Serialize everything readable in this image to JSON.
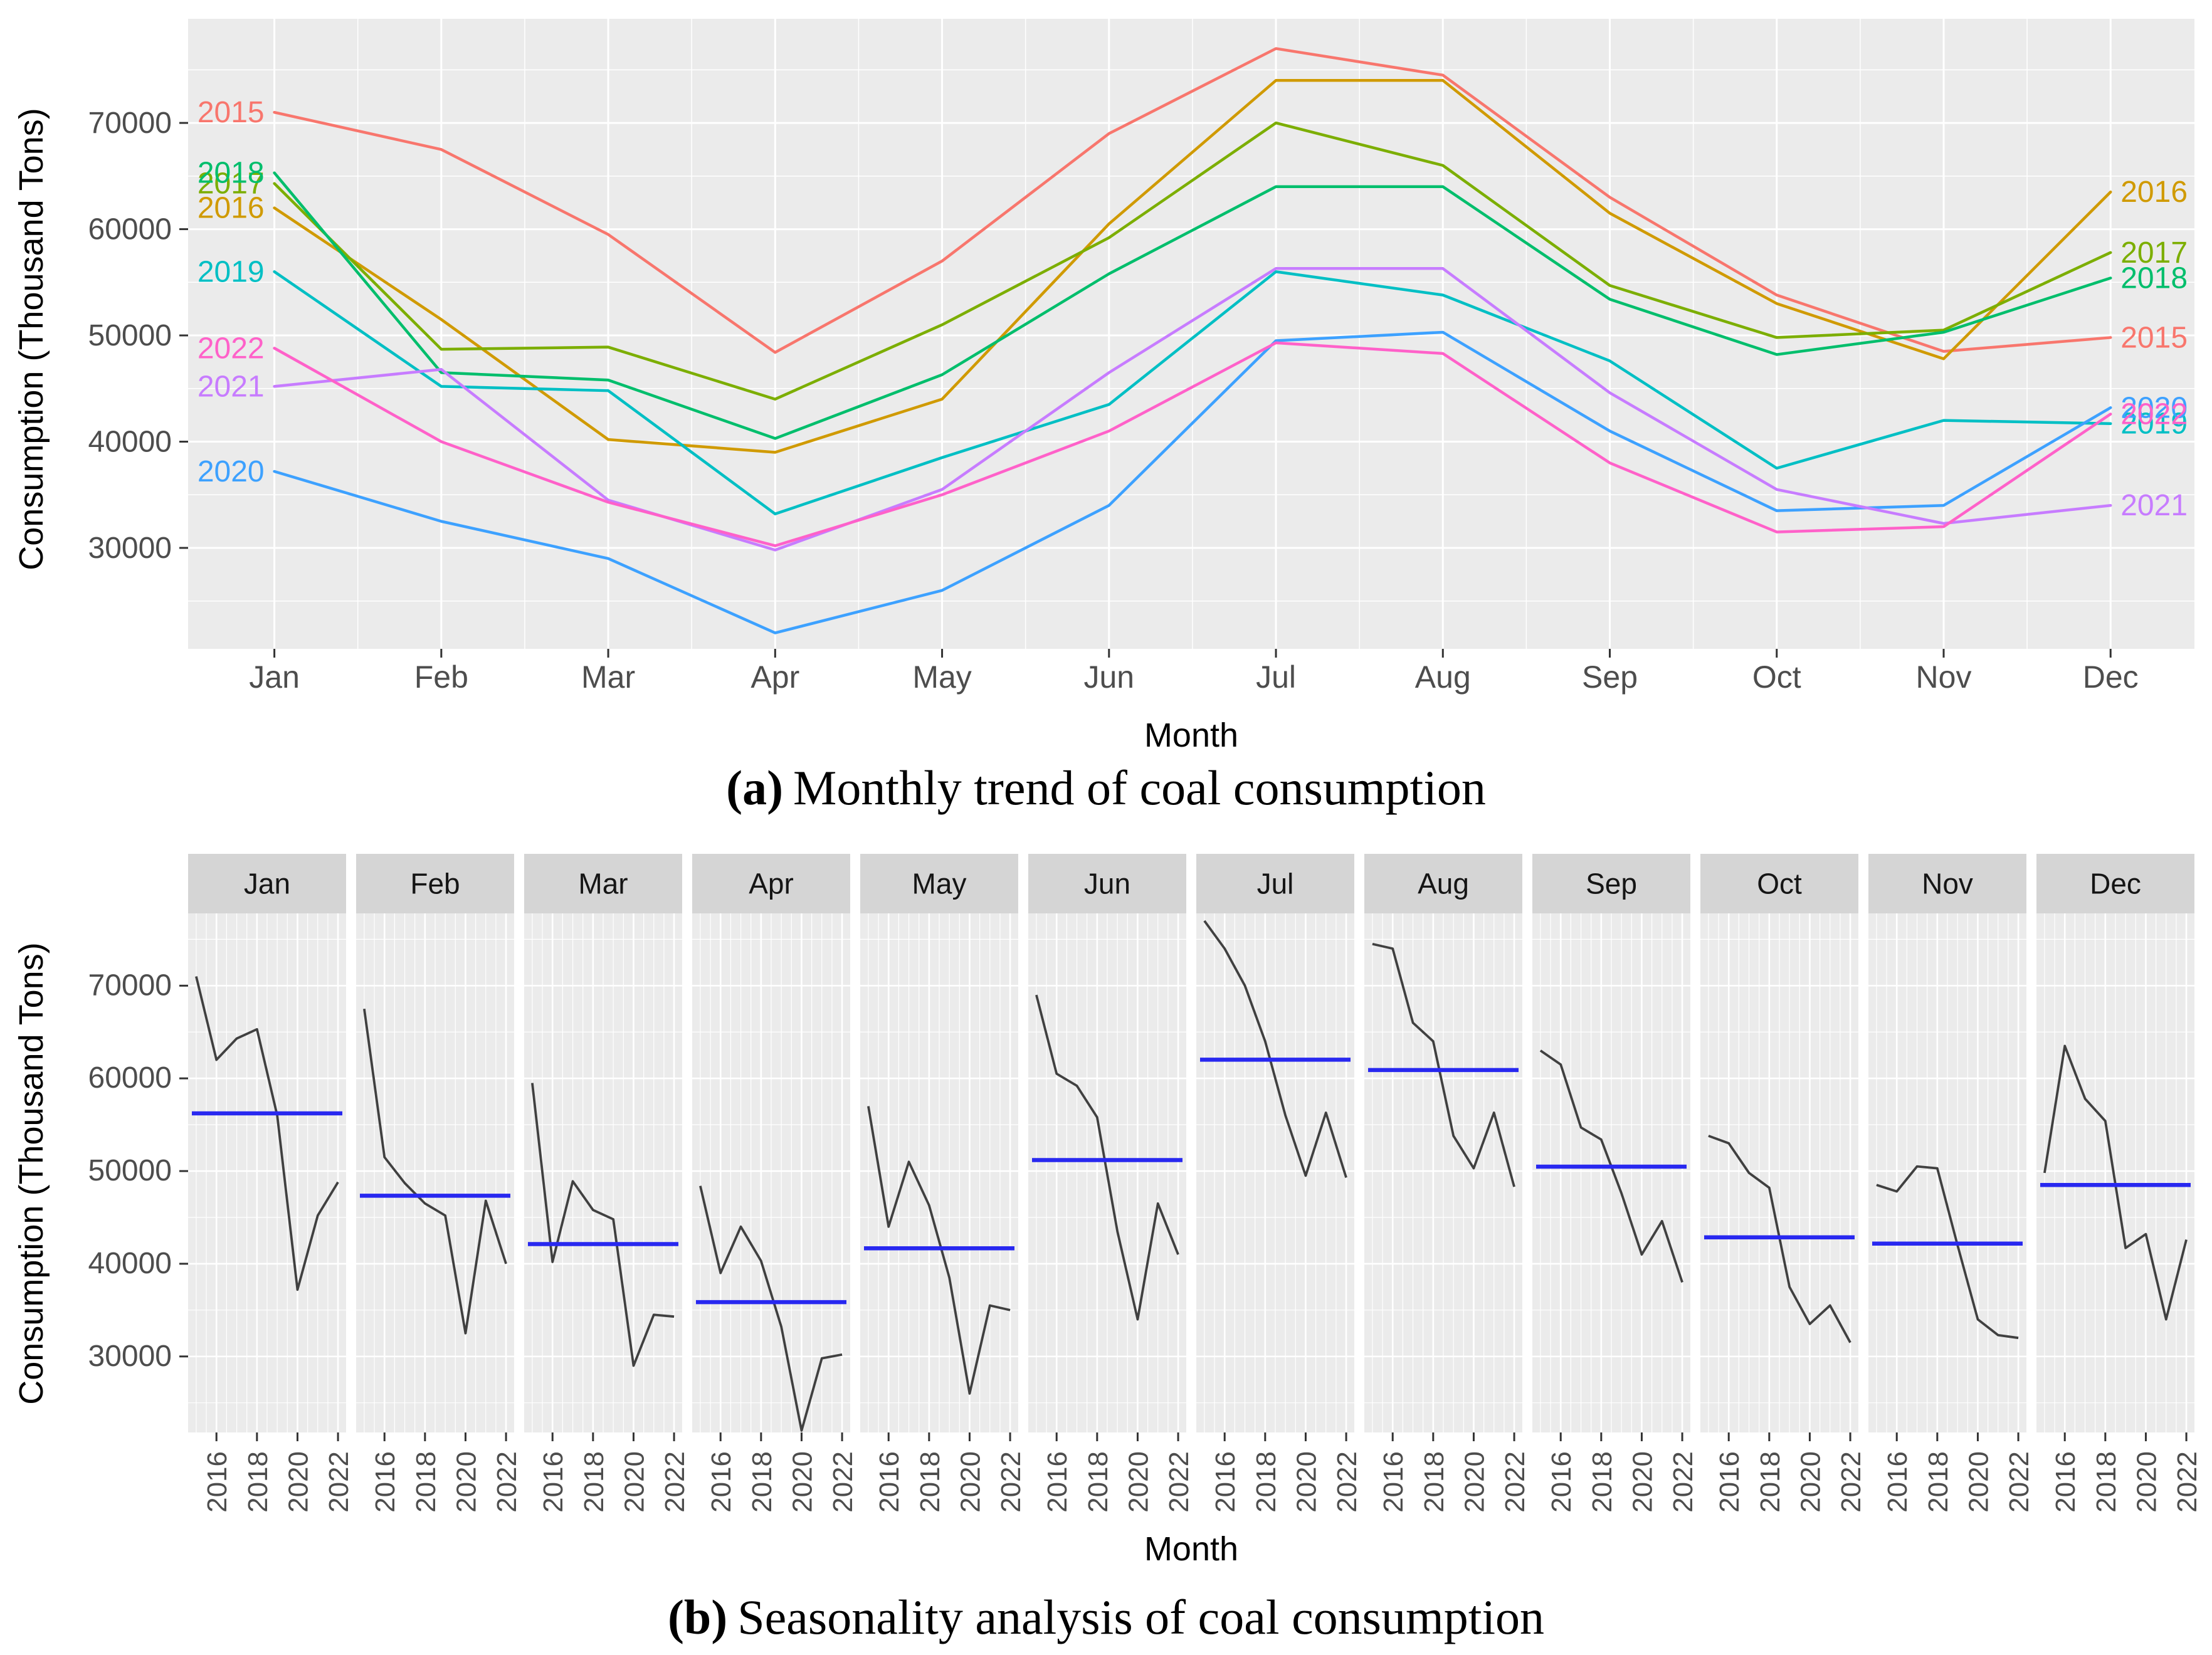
{
  "figure": {
    "caption_a": {
      "label": "(a)",
      "text": "Monthly trend of coal consumption"
    },
    "caption_b": {
      "label": "(b)",
      "text": "Seasonality analysis of coal consumption"
    }
  },
  "style": {
    "panel_bg": "#EBEBEB",
    "grid_color": "#FFFFFF",
    "strip_bg": "#D5D5D5",
    "strip_text_color": "#151515",
    "tick_text_color": "#4D4D4D",
    "tick_mark_color": "#333333"
  },
  "chart_data": [
    {
      "id": "monthly_trend",
      "type": "line",
      "title": "(a) Monthly trend of coal consumption",
      "xlabel": "Month",
      "ylabel": "Consumption (Thousand Tons)",
      "categories": [
        "Jan",
        "Feb",
        "Mar",
        "Apr",
        "May",
        "Jun",
        "Jul",
        "Aug",
        "Sep",
        "Oct",
        "Nov",
        "Dec"
      ],
      "yticks": [
        30000,
        40000,
        50000,
        60000,
        70000
      ],
      "ylim": [
        20500,
        79800
      ],
      "grid": true,
      "legend": "inline-year-labels-at-line-ends",
      "series": [
        {
          "name": "2015",
          "color": "#F8766D",
          "values": [
            71000,
            67500,
            59500,
            48400,
            57000,
            69000,
            77000,
            74500,
            63000,
            53800,
            48500,
            49800
          ]
        },
        {
          "name": "2016",
          "color": "#D09A00",
          "values": [
            62000,
            51500,
            40200,
            39000,
            44000,
            60500,
            74000,
            74000,
            61500,
            53000,
            47800,
            63500
          ]
        },
        {
          "name": "2017",
          "color": "#7CAE00",
          "values": [
            64300,
            48700,
            48900,
            44000,
            51000,
            59200,
            70000,
            66000,
            54700,
            49800,
            50500,
            57800
          ]
        },
        {
          "name": "2018",
          "color": "#00BE6C",
          "values": [
            65300,
            46500,
            45800,
            40300,
            46300,
            55800,
            64000,
            64000,
            53400,
            48200,
            50300,
            55400
          ]
        },
        {
          "name": "2019",
          "color": "#00BFC4",
          "values": [
            56000,
            45200,
            44800,
            33200,
            38500,
            43500,
            56000,
            53800,
            47600,
            37500,
            42000,
            41700
          ]
        },
        {
          "name": "2020",
          "color": "#3DA1FF",
          "values": [
            37200,
            32500,
            29000,
            22000,
            26000,
            34000,
            49500,
            50300,
            41000,
            33500,
            34000,
            43200
          ]
        },
        {
          "name": "2021",
          "color": "#C77CFF",
          "values": [
            45200,
            46800,
            34500,
            29800,
            35500,
            46500,
            56300,
            56300,
            44600,
            35500,
            32300,
            34000
          ]
        },
        {
          "name": "2022",
          "color": "#FF61C9",
          "values": [
            48800,
            40000,
            34300,
            30200,
            35000,
            41000,
            49300,
            48300,
            38000,
            31500,
            32000,
            42600
          ]
        }
      ]
    },
    {
      "id": "seasonality",
      "type": "line-faceted",
      "title": "(b) Seasonality analysis of coal consumption",
      "xlabel": "Month",
      "ylabel": "Consumption (Thousand Tons)",
      "facets": [
        "Jan",
        "Feb",
        "Mar",
        "Apr",
        "May",
        "Jun",
        "Jul",
        "Aug",
        "Sep",
        "Oct",
        "Nov",
        "Dec"
      ],
      "x": [
        2015,
        2016,
        2017,
        2018,
        2019,
        2020,
        2021,
        2022
      ],
      "xticks": [
        2016,
        2018,
        2020,
        2022
      ],
      "yticks": [
        30000,
        40000,
        50000,
        60000,
        70000
      ],
      "ylim": [
        21800,
        77800
      ],
      "values_from": "monthly_trend",
      "line_color": "#404040",
      "mean_line_color": "#2828F0",
      "means": [
        56225,
        47338,
        42125,
        35863,
        41663,
        51188,
        62013,
        60900,
        50475,
        42850,
        42175,
        48500
      ]
    }
  ]
}
